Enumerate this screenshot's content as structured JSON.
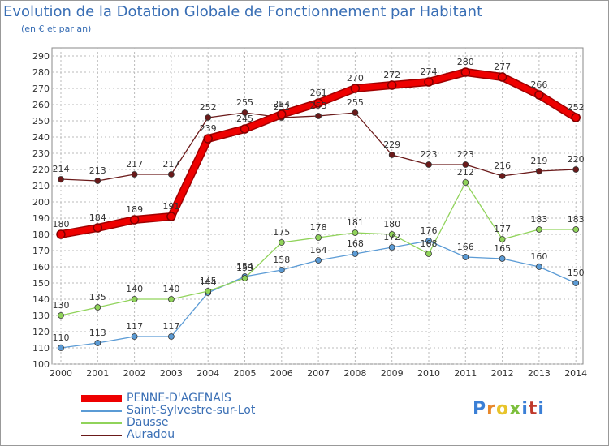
{
  "chart_data": {
    "type": "line",
    "title": "Evolution de la Dotation Globale de Fonctionnement par Habitant",
    "subtitle": "(en € et par an)",
    "xlabel": "",
    "ylabel": "",
    "ylim": [
      100,
      290
    ],
    "yticks": [
      100,
      110,
      120,
      130,
      140,
      150,
      160,
      170,
      180,
      190,
      200,
      210,
      220,
      230,
      240,
      250,
      260,
      270,
      280,
      290
    ],
    "categories": [
      "2000",
      "2001",
      "2002",
      "2003",
      "2004",
      "2005",
      "2006",
      "2007",
      "2008",
      "2009",
      "2010",
      "2011",
      "2012",
      "2013",
      "2014"
    ],
    "series": [
      {
        "name": "Auradou",
        "color": "#6b1a1a",
        "values": [
          214,
          213,
          217,
          217,
          252,
          255,
          252,
          253,
          255,
          229,
          223,
          223,
          216,
          219,
          220
        ]
      },
      {
        "name": "Saint-Sylvestre-sur-Lot",
        "color": "#5b9bd5",
        "values": [
          110,
          113,
          117,
          117,
          144,
          154,
          158,
          164,
          168,
          172,
          176,
          166,
          165,
          160,
          150
        ]
      },
      {
        "name": "Dausse",
        "color": "#90d35a",
        "values": [
          130,
          135,
          140,
          140,
          145,
          153,
          175,
          178,
          181,
          180,
          168,
          212,
          177,
          183,
          183
        ]
      },
      {
        "name": "PENNE-D'AGENAIS",
        "color": "#ee0000",
        "values": [
          180,
          184,
          189,
          191,
          239,
          245,
          254,
          261,
          270,
          272,
          274,
          280,
          277,
          266,
          252
        ]
      }
    ],
    "legend": [
      "PENNE-D'AGENAIS",
      "Saint-Sylvestre-sur-Lot",
      "Dausse",
      "Auradou"
    ],
    "legend_position": "bottom-left",
    "grid": true
  },
  "logo": {
    "letters": [
      "P",
      "r",
      "o",
      "x",
      "i",
      "t",
      "i"
    ]
  }
}
